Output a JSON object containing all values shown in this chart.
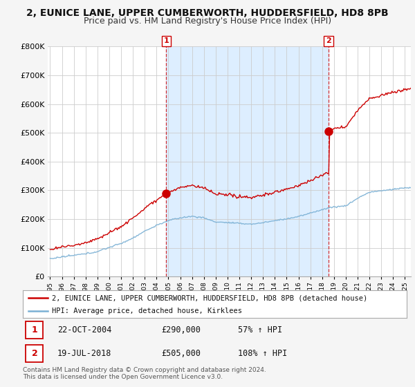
{
  "title": "2, EUNICE LANE, UPPER CUMBERWORTH, HUDDERSFIELD, HD8 8PB",
  "subtitle": "Price paid vs. HM Land Registry's House Price Index (HPI)",
  "ylabel_ticks": [
    "£0",
    "£100K",
    "£200K",
    "£300K",
    "£400K",
    "£500K",
    "£600K",
    "£700K",
    "£800K"
  ],
  "ylim": [
    0,
    800000
  ],
  "xlim_start": 1995.0,
  "xlim_end": 2025.5,
  "sale1_x": 2004.81,
  "sale1_y": 290000,
  "sale1_label": "1",
  "sale2_x": 2018.54,
  "sale2_y": 505000,
  "sale2_label": "2",
  "sale_color": "#cc0000",
  "hpi_color": "#7ab0d4",
  "bg_color": "#f5f5f5",
  "plot_bg": "#ffffff",
  "fill_color": "#ddeeff",
  "legend_line1": "2, EUNICE LANE, UPPER CUMBERWORTH, HUDDERSFIELD, HD8 8PB (detached house)",
  "legend_line2": "HPI: Average price, detached house, Kirklees",
  "table_row1": [
    "1",
    "22-OCT-2004",
    "£290,000",
    "57% ↑ HPI"
  ],
  "table_row2": [
    "2",
    "19-JUL-2018",
    "£505,000",
    "108% ↑ HPI"
  ],
  "footer": "Contains HM Land Registry data © Crown copyright and database right 2024.\nThis data is licensed under the Open Government Licence v3.0.",
  "title_fontsize": 10,
  "subtitle_fontsize": 9
}
